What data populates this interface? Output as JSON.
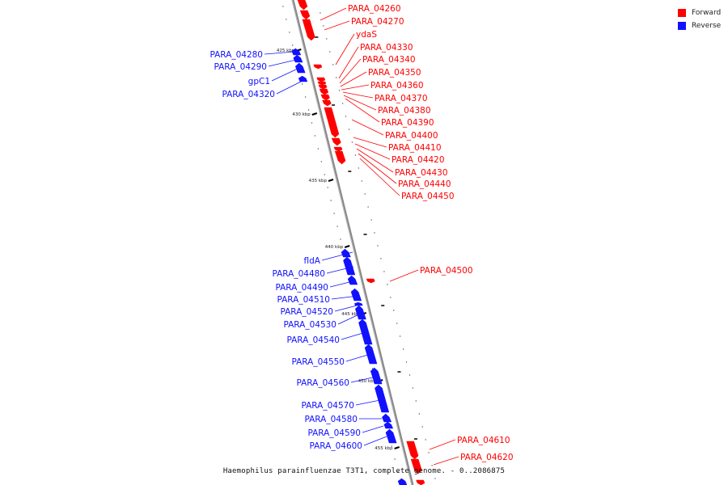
{
  "colors": {
    "forward": "#ff0000",
    "reverse": "#1111ff",
    "axis": "#888888"
  },
  "legend": {
    "forward": "Forward",
    "reverse": "Reverse"
  },
  "caption": "Haemophilus parainfluenzae T3T1, complete genome. - 0..2086875",
  "ticks": [
    "425 kbp",
    "430 kbp",
    "435 kbp",
    "440 kbp",
    "445 kbp",
    "450 kbp",
    "455 kbp"
  ],
  "forward_genes": [
    "PARA_04260",
    "PARA_04270",
    "ydaS",
    "PARA_04330",
    "PARA_04340",
    "PARA_04350",
    "PARA_04360",
    "PARA_04370",
    "PARA_04380",
    "PARA_04390",
    "PARA_04400",
    "PARA_04410",
    "PARA_04420",
    "PARA_04430",
    "PARA_04440",
    "PARA_04450",
    "PARA_04500",
    "PARA_04610",
    "PARA_04620"
  ],
  "reverse_genes": [
    "PARA_04280",
    "PARA_04290",
    "gpC1",
    "PARA_04320",
    "fldA",
    "PARA_04480",
    "PARA_04490",
    "PARA_04510",
    "PARA_04520",
    "PARA_04530",
    "PARA_04540",
    "PARA_04550",
    "PARA_04560",
    "PARA_04570",
    "PARA_04580",
    "PARA_04590",
    "PARA_04600"
  ]
}
